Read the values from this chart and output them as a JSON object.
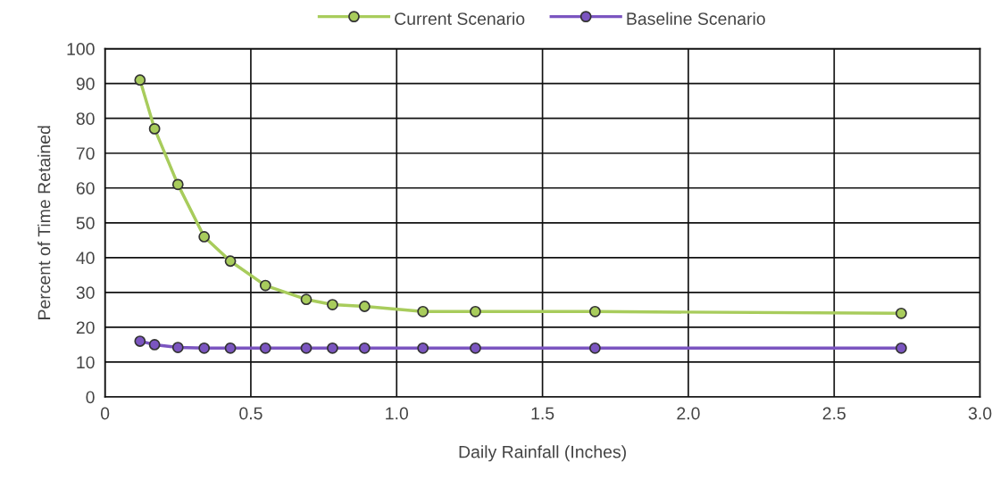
{
  "chart_data": {
    "type": "line",
    "xlabel": "Daily Rainfall (Inches)",
    "ylabel": "Percent of Time Retained",
    "x": [
      0.12,
      0.17,
      0.25,
      0.34,
      0.43,
      0.55,
      0.69,
      0.78,
      0.89,
      1.09,
      1.27,
      1.68,
      2.73
    ],
    "series": [
      {
        "name": "Current Scenario",
        "color": "#a8cc5c",
        "values": [
          91,
          77,
          61,
          46,
          39,
          32,
          28,
          26.5,
          26,
          24.5,
          24.5,
          24.5,
          24
        ]
      },
      {
        "name": "Baseline Scenario",
        "color": "#7b55c0",
        "values": [
          16,
          15,
          14.2,
          14,
          14,
          14,
          14,
          14,
          14,
          14,
          14,
          14,
          14
        ]
      }
    ],
    "xlim": [
      0,
      3
    ],
    "xticks": [
      0,
      {
        "value": 0.5,
        "label": "0.5"
      },
      {
        "value": 1,
        "label": "1.0"
      },
      {
        "value": 1.5,
        "label": "1.5"
      },
      {
        "value": 2,
        "label": "2.0"
      },
      {
        "value": 2.5,
        "label": "2.5"
      },
      {
        "value": 3,
        "label": "3.0"
      }
    ],
    "ylim": [
      0,
      100
    ],
    "yticks": [
      0,
      10,
      20,
      30,
      40,
      50,
      60,
      70,
      80,
      90,
      100
    ],
    "grid": true,
    "legend": "top",
    "marker": "circle",
    "line_style": "solid"
  }
}
